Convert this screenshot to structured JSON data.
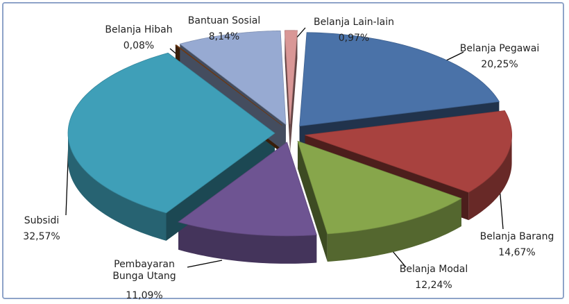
{
  "chart_data": {
    "type": "pie",
    "categories": [
      "Belanja Pegawai",
      "Belanja Barang",
      "Belanja Modal",
      "Pembayaran Bunga Utang",
      "Subsidi",
      "Belanja Hibah",
      "Bantuan Sosial",
      "Belanja Lain-lain"
    ],
    "values": [
      20.25,
      14.67,
      12.24,
      11.09,
      32.57,
      0.08,
      8.14,
      0.97
    ],
    "value_labels": [
      "20,25%",
      "14,67%",
      "12,24%",
      "11,09%",
      "32,57%",
      "0,08%",
      "8,14%",
      "0,97%"
    ],
    "colors": [
      "#4a72a8",
      "#a8423f",
      "#87a64b",
      "#6e5492",
      "#3f9fb8",
      "#7d4217",
      "#97aad2",
      "#d99796"
    ]
  }
}
